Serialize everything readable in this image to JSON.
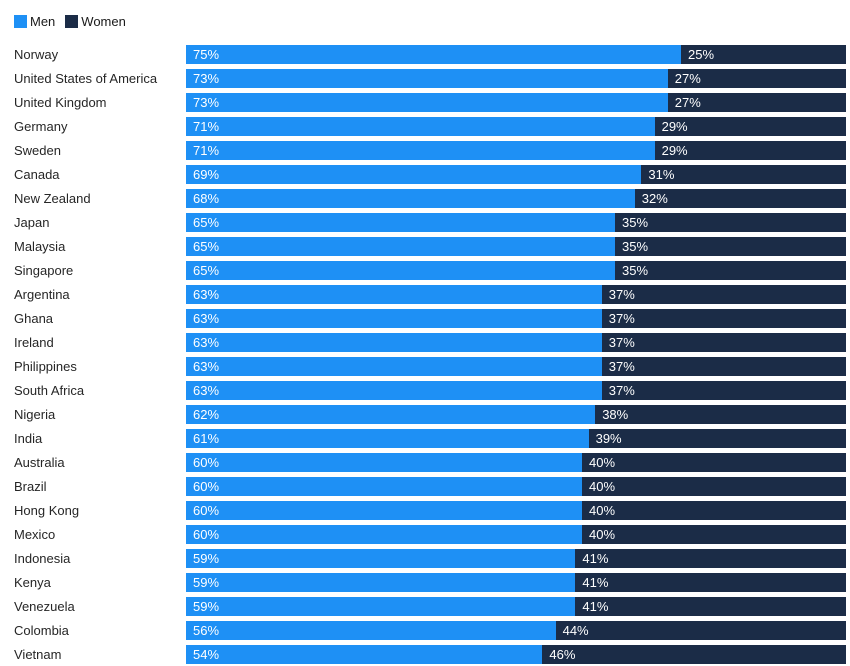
{
  "legend": {
    "items": [
      {
        "label": "Men",
        "color": "#1E90F5"
      },
      {
        "label": "Women",
        "color": "#1B2C47"
      }
    ]
  },
  "chart_data": {
    "type": "bar",
    "orientation": "horizontal",
    "stacked": true,
    "title": "",
    "xlabel": "",
    "ylabel": "",
    "xlim": [
      0,
      100
    ],
    "grid": false,
    "legend_position": "top-left",
    "value_suffix": "%",
    "bar_label_position": "inside-start",
    "categories": [
      "Norway",
      "United States of America",
      "United Kingdom",
      "Germany",
      "Sweden",
      "Canada",
      "New Zealand",
      "Japan",
      "Malaysia",
      "Singapore",
      "Argentina",
      "Ghana",
      "Ireland",
      "Philippines",
      "South Africa",
      "Nigeria",
      "India",
      "Australia",
      "Brazil",
      "Hong Kong",
      "Mexico",
      "Indonesia",
      "Kenya",
      "Venezuela",
      "Colombia",
      "Vietnam"
    ],
    "series": [
      {
        "name": "Men",
        "color": "#1E90F5",
        "values": [
          75,
          73,
          73,
          71,
          71,
          69,
          68,
          65,
          65,
          65,
          63,
          63,
          63,
          63,
          63,
          62,
          61,
          60,
          60,
          60,
          60,
          59,
          59,
          59,
          56,
          54
        ]
      },
      {
        "name": "Women",
        "color": "#1B2C47",
        "values": [
          25,
          27,
          27,
          29,
          29,
          31,
          32,
          35,
          35,
          35,
          37,
          37,
          37,
          37,
          37,
          38,
          39,
          40,
          40,
          40,
          40,
          41,
          41,
          41,
          44,
          46
        ]
      }
    ]
  }
}
